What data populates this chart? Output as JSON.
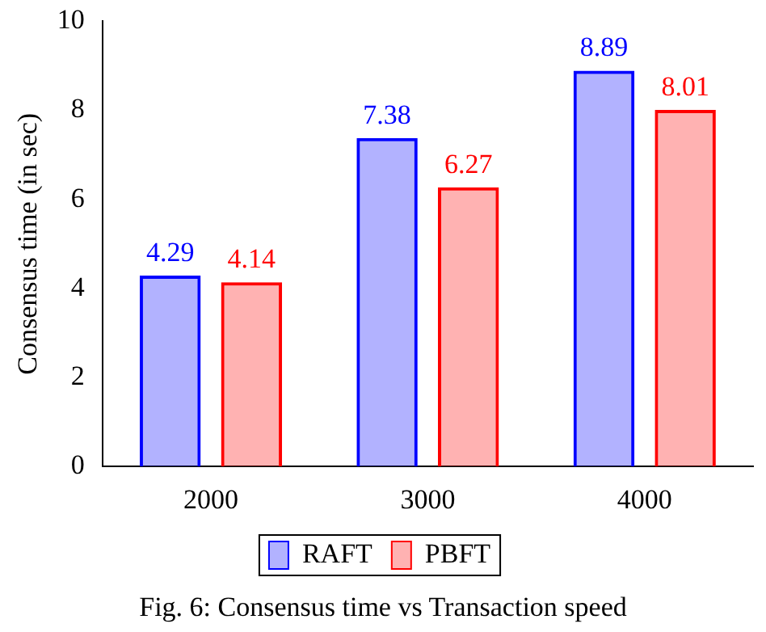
{
  "chart_data": {
    "type": "bar",
    "ylabel": "Consensus time (in sec)",
    "categories": [
      "2000",
      "3000",
      "4000"
    ],
    "series": [
      {
        "name": "RAFT",
        "color": "#0000ff",
        "values": [
          4.29,
          7.38,
          8.89
        ]
      },
      {
        "name": "PBFT",
        "color": "#ff0000",
        "values": [
          4.14,
          6.27,
          8.01
        ]
      }
    ],
    "ylim": [
      0,
      10
    ],
    "yticks": [
      0,
      2,
      4,
      6,
      8,
      10
    ],
    "grid": false,
    "legend": "bottom",
    "data_labels": true,
    "annotations": [
      "Fig. 6: Consensus time vs Transaction speed"
    ]
  }
}
